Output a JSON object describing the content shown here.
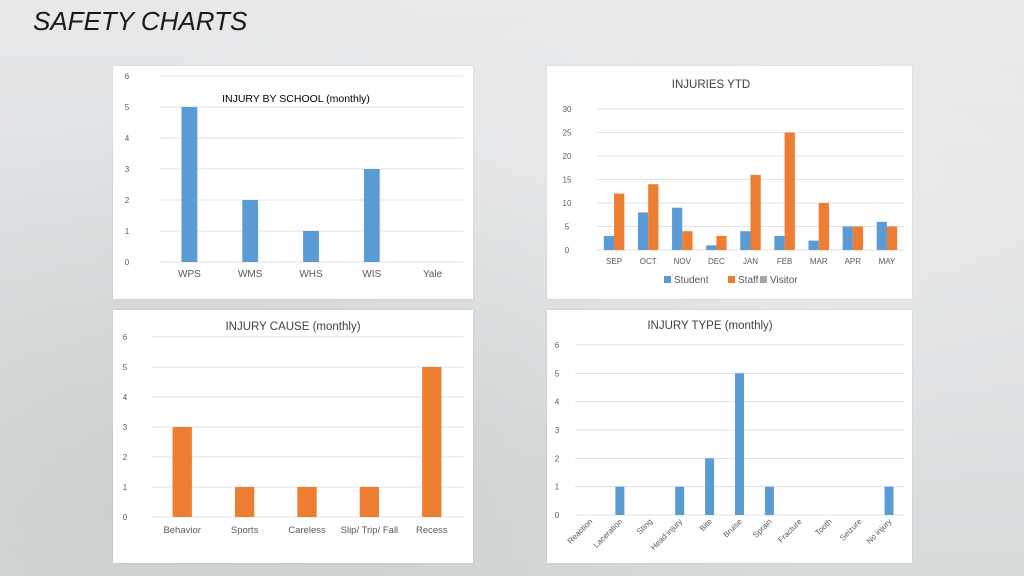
{
  "page": {
    "title": "SAFETY CHARTS"
  },
  "colors": {
    "student": "#5b9bd5",
    "staff": "#ed7d31",
    "visitor": "#a5a5a5",
    "grid": "#d9d9d9",
    "axis_text": "#595959"
  },
  "chart_data": [
    {
      "id": "injury-by-school",
      "type": "bar",
      "title": "INJURY BY SCHOOL (monthly)",
      "categories": [
        "WPS",
        "WMS",
        "WHS",
        "WIS",
        "Yale"
      ],
      "values": [
        5,
        2,
        1,
        3,
        0
      ],
      "color": "#5b9bd5",
      "ylim": [
        0,
        6
      ],
      "yticks": [
        0,
        1,
        2,
        3,
        4,
        5,
        6
      ],
      "grid": true
    },
    {
      "id": "injuries-ytd",
      "type": "bar",
      "title": "INJURIES  YTD",
      "categories": [
        "SEP",
        "OCT",
        "NOV",
        "DEC",
        "JAN",
        "FEB",
        "MAR",
        "APR",
        "MAY"
      ],
      "series": [
        {
          "name": "Student",
          "color": "#5b9bd5",
          "values": [
            3,
            8,
            9,
            1,
            4,
            3,
            2,
            5,
            6
          ]
        },
        {
          "name": "Staff",
          "color": "#ed7d31",
          "values": [
            12,
            14,
            4,
            3,
            16,
            25,
            10,
            5,
            5
          ]
        },
        {
          "name": "Visitor",
          "color": "#a5a5a5",
          "values": [
            0,
            0,
            0,
            0,
            0,
            0,
            0,
            0,
            0
          ]
        }
      ],
      "ylim": [
        0,
        30
      ],
      "yticks": [
        0,
        5,
        10,
        15,
        20,
        25,
        30
      ],
      "grid": true,
      "legend": "bottom"
    },
    {
      "id": "injury-cause",
      "type": "bar",
      "title": "INJURY CAUSE (monthly)",
      "categories": [
        "Behavior",
        "Sports",
        "Careless",
        "Slip/ Trip/ Fall",
        "Recess"
      ],
      "values": [
        3,
        1,
        1,
        1,
        5
      ],
      "color": "#ed7d31",
      "ylim": [
        0,
        6
      ],
      "yticks": [
        0,
        1,
        2,
        3,
        4,
        5,
        6
      ],
      "grid": true
    },
    {
      "id": "injury-type",
      "type": "bar",
      "title": "INJURY TYPE (monthly)",
      "categories": [
        "Reaction",
        "Laceration",
        "Sting",
        "Head injury",
        "Bite",
        "Bruise",
        "Sprain",
        "Fracture",
        "Tooth",
        "Seizure",
        "No injury"
      ],
      "values": [
        0,
        1,
        0,
        1,
        2,
        5,
        1,
        0,
        0,
        0,
        1
      ],
      "color": "#5b9bd5",
      "ylim": [
        0,
        6
      ],
      "yticks": [
        0,
        1,
        2,
        3,
        4,
        5,
        6
      ],
      "grid": true
    }
  ]
}
